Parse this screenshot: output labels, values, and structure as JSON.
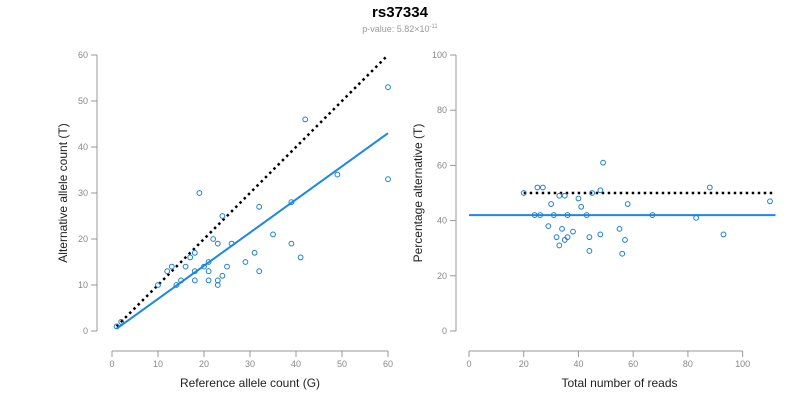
{
  "title": "rs37334",
  "subtitle": {
    "prefix": "p-value: 5.82×10",
    "exponent": "-11"
  },
  "colors": {
    "points": "#1e7fcf",
    "fit_line": "#1e88e5",
    "reference_line": "#000000",
    "axis": "#999999",
    "tick_labels": "#888888"
  },
  "chart_data": [
    {
      "type": "scatter",
      "xlabel": "Reference allele count (G)",
      "ylabel": "Alternative allele count (T)",
      "xlim": [
        0,
        60
      ],
      "ylim": [
        0,
        60
      ],
      "xticks": [
        0,
        10,
        20,
        30,
        40,
        50,
        60
      ],
      "yticks": [
        0,
        10,
        20,
        30,
        40,
        50,
        60
      ],
      "grid": false,
      "points": [
        [
          1,
          1
        ],
        [
          2,
          2
        ],
        [
          10,
          10
        ],
        [
          12,
          13
        ],
        [
          13,
          14
        ],
        [
          14,
          10
        ],
        [
          15,
          11
        ],
        [
          16,
          14
        ],
        [
          17,
          16
        ],
        [
          18,
          13
        ],
        [
          18,
          17
        ],
        [
          18,
          11
        ],
        [
          19,
          30
        ],
        [
          20,
          14
        ],
        [
          21,
          11
        ],
        [
          21,
          13
        ],
        [
          21,
          15
        ],
        [
          22,
          20
        ],
        [
          23,
          19
        ],
        [
          23,
          10
        ],
        [
          23,
          11
        ],
        [
          24,
          12
        ],
        [
          24,
          25
        ],
        [
          25,
          14
        ],
        [
          26,
          19
        ],
        [
          29,
          15
        ],
        [
          31,
          17
        ],
        [
          32,
          13
        ],
        [
          32,
          27
        ],
        [
          35,
          21
        ],
        [
          39,
          19
        ],
        [
          39,
          28
        ],
        [
          41,
          16
        ],
        [
          42,
          46
        ],
        [
          49,
          34
        ],
        [
          60,
          53
        ],
        [
          60,
          33
        ]
      ],
      "reference_line": {
        "style": "dotted",
        "from": [
          1,
          1
        ],
        "to": [
          60,
          60
        ]
      },
      "fit_line": {
        "style": "solid",
        "from": [
          1,
          0.5
        ],
        "to": [
          60,
          43
        ]
      }
    },
    {
      "type": "scatter",
      "xlabel": "Total number of reads",
      "ylabel": "Percentage alternative (T)",
      "xlim": [
        0,
        110
      ],
      "ylim": [
        0,
        100
      ],
      "xticks": [
        0,
        20,
        40,
        60,
        80,
        100
      ],
      "yticks": [
        0,
        20,
        40,
        60,
        80,
        100
      ],
      "grid": false,
      "points": [
        [
          20,
          50
        ],
        [
          24,
          42
        ],
        [
          25,
          52
        ],
        [
          26,
          42
        ],
        [
          27,
          52
        ],
        [
          29,
          38
        ],
        [
          30,
          46
        ],
        [
          31,
          42
        ],
        [
          32,
          34
        ],
        [
          33,
          31
        ],
        [
          33,
          49
        ],
        [
          34,
          37
        ],
        [
          35,
          33
        ],
        [
          35,
          49
        ],
        [
          36,
          42
        ],
        [
          36,
          34
        ],
        [
          38,
          36
        ],
        [
          40,
          48
        ],
        [
          41,
          45
        ],
        [
          43,
          42
        ],
        [
          44,
          34
        ],
        [
          44,
          29
        ],
        [
          45,
          50
        ],
        [
          48,
          51
        ],
        [
          48,
          35
        ],
        [
          49,
          61
        ],
        [
          55,
          37
        ],
        [
          56,
          28
        ],
        [
          57,
          33
        ],
        [
          58,
          46
        ],
        [
          67,
          42
        ],
        [
          83,
          41
        ],
        [
          88,
          52
        ],
        [
          93,
          35
        ],
        [
          110,
          47
        ]
      ],
      "reference_line": {
        "style": "dotted",
        "y": 50,
        "from_x": 20,
        "to_x": 112
      },
      "fit_line": {
        "style": "solid",
        "y": 42,
        "from_x": 0,
        "to_x": 112
      }
    }
  ]
}
